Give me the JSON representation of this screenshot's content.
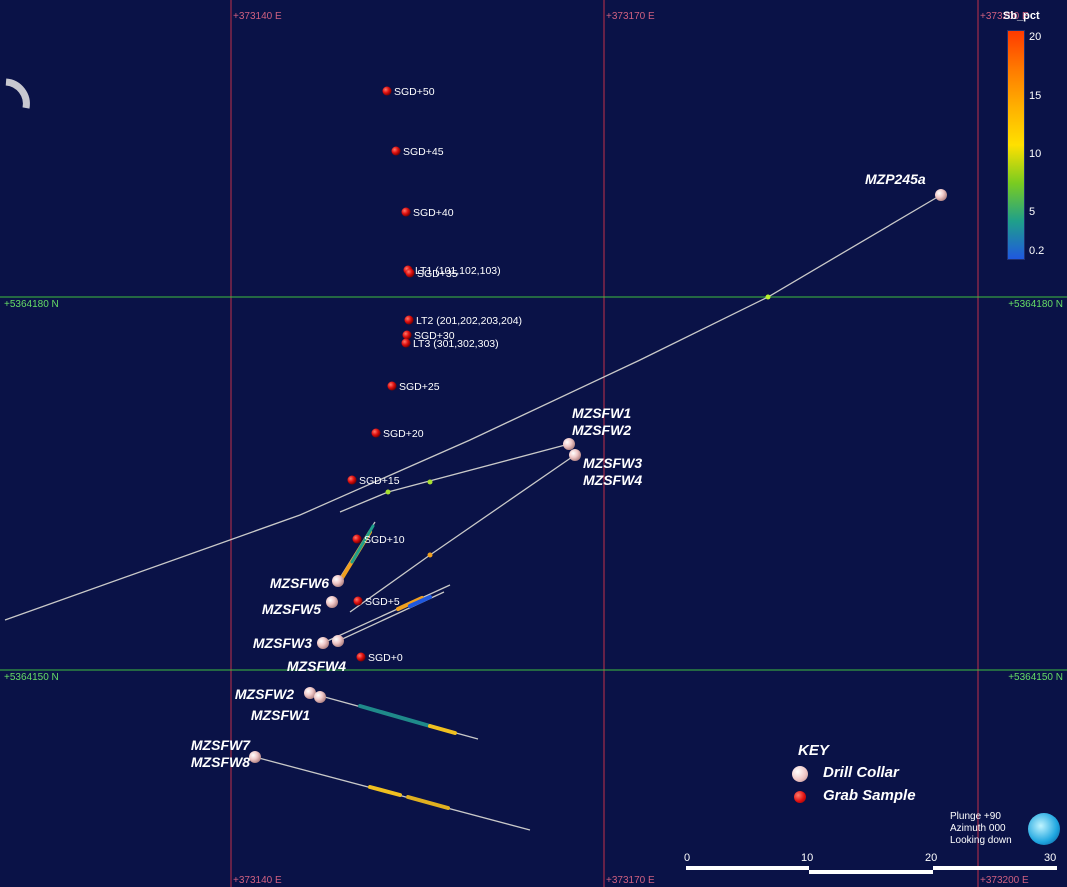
{
  "grid": {
    "eastings": [
      {
        "label": "+373140 E",
        "value": 373140
      },
      {
        "label": "+373170 E",
        "value": 373170
      },
      {
        "label": "+373200 E",
        "value": 373200
      }
    ],
    "northings": [
      {
        "label": "+5364180 N",
        "value": 5364180
      },
      {
        "label": "+5364150 N",
        "value": 5364150
      }
    ],
    "grid_color": "#c0304a",
    "northing_color": "#3fbf3f"
  },
  "grab_samples": [
    {
      "label": "SGD+50"
    },
    {
      "label": "SGD+45"
    },
    {
      "label": "SGD+40"
    },
    {
      "label": "LT1 (101,102,103)"
    },
    {
      "label": "SGD+35"
    },
    {
      "label": "LT2 (201,202,203,204)"
    },
    {
      "label": "SGD+30"
    },
    {
      "label": "LT3 (301,302,303)"
    },
    {
      "label": "SGD+25"
    },
    {
      "label": "SGD+20"
    },
    {
      "label": "SGD+15"
    },
    {
      "label": "SGD+10"
    },
    {
      "label": "SGD+5"
    },
    {
      "label": "SGD+0"
    }
  ],
  "drill_holes": [
    {
      "label": "MZP245a"
    },
    {
      "label": "MZSFW1\nMZSFW2"
    },
    {
      "label": "MZSFW3\nMZSFW4"
    },
    {
      "label": "MZSFW6"
    },
    {
      "label": "MZSFW5"
    },
    {
      "label": "MZSFW3"
    },
    {
      "label": "MZSFW4"
    },
    {
      "label": "MZSFW2"
    },
    {
      "label": "MZSFW1"
    },
    {
      "label": "MZSFW7\nMZSFW8"
    }
  ],
  "legend": {
    "title": "KEY",
    "items": [
      {
        "label": "Drill Collar",
        "symbol": "drill-collar-icon"
      },
      {
        "label": "Grab Sample",
        "symbol": "grab-sample-icon"
      }
    ]
  },
  "colorbar": {
    "title": "Sb_pct",
    "ticks": [
      "20",
      "15",
      "10",
      "5",
      "0.2"
    ],
    "colors": [
      "#ff3a00",
      "#ff7a00",
      "#ffb000",
      "#ffe000",
      "#7acc20",
      "#1fa08a",
      "#1f58e0"
    ]
  },
  "view_info": {
    "plunge": "Plunge +90",
    "azimuth": "Azimuth 000",
    "looking": "Looking down"
  },
  "scale_bar": {
    "ticks": [
      "0",
      "10",
      "20",
      "30"
    ]
  }
}
